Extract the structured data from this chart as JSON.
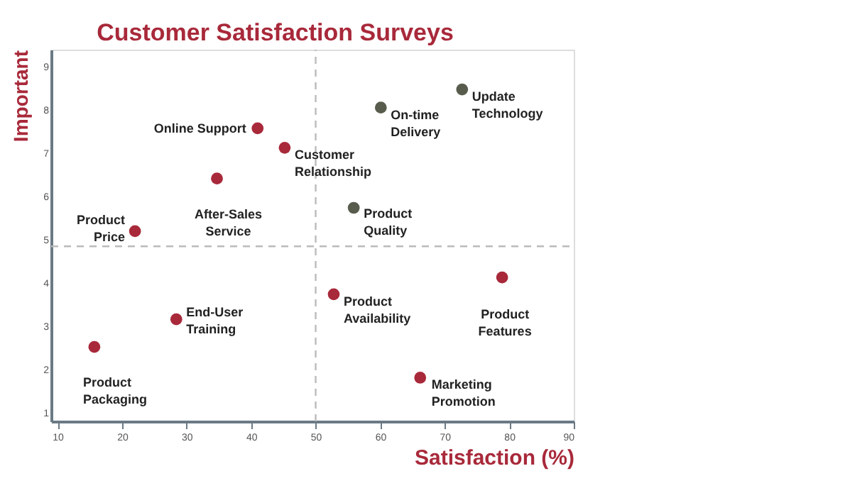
{
  "chart_data": {
    "type": "scatter",
    "title": "Customer Satisfaction Surveys",
    "xlabel": "Satisfaction (%)",
    "ylabel": "Important",
    "xlim": [
      9,
      90
    ],
    "xticks": [
      10,
      20,
      30,
      40,
      50,
      60,
      70,
      80,
      90
    ],
    "ylim": [
      0.8,
      9.4
    ],
    "yticks": [
      1,
      2,
      3,
      4,
      5,
      6,
      7,
      8,
      9
    ],
    "grid": false,
    "marker": "circle",
    "series": [
      {
        "color": "#a8293a",
        "x": [
          41.0,
          45.2,
          34.7,
          22.0,
          78.9,
          52.8,
          28.4,
          15.7,
          66.2
        ],
        "values": [
          7.58,
          7.13,
          6.42,
          5.2,
          4.13,
          3.74,
          3.16,
          2.52,
          1.81
        ]
      },
      {
        "color": "#575c4c",
        "x": [
          55.9,
          60.1,
          72.7
        ],
        "values": [
          5.74,
          8.06,
          8.48
        ]
      }
    ],
    "ref_lines": [
      {
        "axis": "x",
        "value": 50,
        "color": "#bbbbbb",
        "line_style": "dashed"
      },
      {
        "axis": "y",
        "value": 4.85,
        "color": "#bbbbbb",
        "line_style": "dashed"
      }
    ],
    "annotations": [
      {
        "text": "Online Support",
        "x": 41.0,
        "y": 7.58
      },
      {
        "text": "Customer Relationship",
        "x": 45.2,
        "y": 7.13
      },
      {
        "text": "After-Sales Service",
        "x": 34.7,
        "y": 6.42
      },
      {
        "text": "Product Price",
        "x": 22.0,
        "y": 5.2
      },
      {
        "text": "Product Features",
        "x": 78.9,
        "y": 4.13
      },
      {
        "text": "Product Availability",
        "x": 52.8,
        "y": 3.74
      },
      {
        "text": "End-User Training",
        "x": 28.4,
        "y": 3.16
      },
      {
        "text": "Product Packaging",
        "x": 15.7,
        "y": 2.52
      },
      {
        "text": "Marketing Promotion",
        "x": 66.2,
        "y": 1.81
      },
      {
        "text": "Product Quality",
        "x": 55.9,
        "y": 5.74
      },
      {
        "text": "On-time Delivery",
        "x": 60.1,
        "y": 8.06
      },
      {
        "text": "Update Technology",
        "x": 72.7,
        "y": 8.48
      }
    ]
  }
}
